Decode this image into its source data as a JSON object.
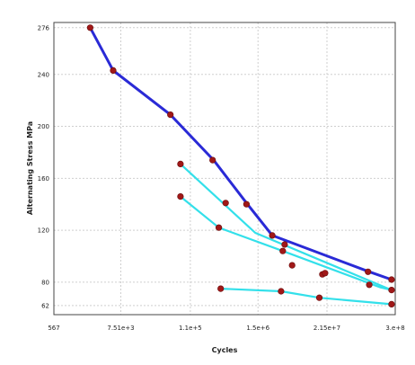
{
  "chart_data": {
    "type": "line",
    "title": "",
    "xlabel": "Cycles",
    "ylabel": "Alternating Stress MPa",
    "x_scale": "log",
    "x_tick_labels": [
      "567",
      "7.51e+3",
      "1.1e+5",
      "1.5e+6",
      "2.15e+7",
      "3.e+8"
    ],
    "x_tick_values": [
      567,
      7510,
      110000,
      1500000,
      21500000,
      300000000
    ],
    "xlim": [
      567,
      300000000
    ],
    "y_tick_labels": [
      "276",
      "240",
      "200",
      "160",
      "120",
      "80",
      "62"
    ],
    "y_tick_values": [
      276,
      240,
      200,
      160,
      120,
      80,
      62
    ],
    "ylim": [
      55,
      280
    ],
    "grid": true,
    "legend": "none",
    "series": [
      {
        "color": "#2a2ad6",
        "x": [
          2300,
          5600,
          51000,
          270000,
          1000000,
          2600000,
          110000000,
          260000000
        ],
        "y": [
          276,
          243,
          209,
          174,
          140,
          116,
          88,
          82
        ]
      },
      {
        "color": "#33e0ea",
        "x": [
          75000,
          1350000,
          260000000
        ],
        "y": [
          171,
          118,
          74
        ]
      },
      {
        "color": "#33e0ea",
        "x": [
          75000,
          330000,
          3900000,
          170000000,
          260000000
        ],
        "y": [
          146,
          122,
          104,
          76,
          74
        ]
      },
      {
        "color": "#33e0ea",
        "x": [
          355000,
          3650000,
          16000000,
          260000000
        ],
        "y": [
          75,
          73,
          68,
          63
        ]
      }
    ],
    "markers": {
      "color": "#a01818",
      "points": [
        {
          "x": 2300,
          "y": 276
        },
        {
          "x": 5600,
          "y": 243
        },
        {
          "x": 51000,
          "y": 209
        },
        {
          "x": 260000,
          "y": 174
        },
        {
          "x": 960000,
          "y": 140
        },
        {
          "x": 2600000,
          "y": 116
        },
        {
          "x": 105000000,
          "y": 88
        },
        {
          "x": 260000000,
          "y": 82
        },
        {
          "x": 75000,
          "y": 171
        },
        {
          "x": 430000,
          "y": 141
        },
        {
          "x": 4200000,
          "y": 109
        },
        {
          "x": 18000000,
          "y": 86
        },
        {
          "x": 20000000,
          "y": 87
        },
        {
          "x": 75000,
          "y": 146
        },
        {
          "x": 330000,
          "y": 122
        },
        {
          "x": 3900000,
          "y": 104
        },
        {
          "x": 5600000,
          "y": 93
        },
        {
          "x": 110000000,
          "y": 78
        },
        {
          "x": 260000000,
          "y": 74
        },
        {
          "x": 355000,
          "y": 75
        },
        {
          "x": 3650000,
          "y": 73
        },
        {
          "x": 16000000,
          "y": 68
        },
        {
          "x": 260000000,
          "y": 63
        }
      ]
    }
  }
}
